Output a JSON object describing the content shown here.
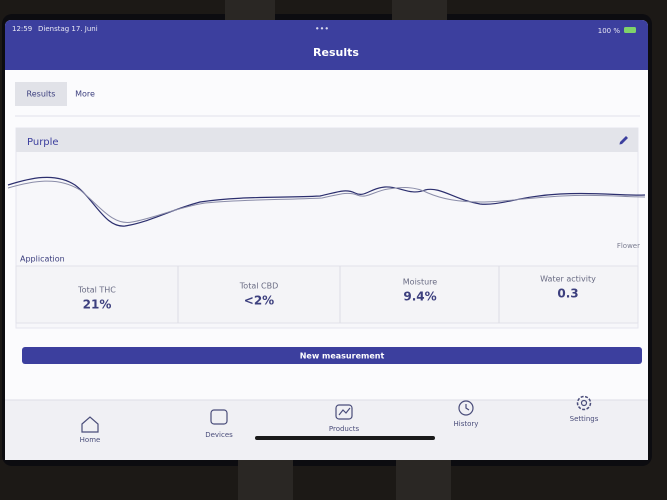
{
  "status": {
    "time": "12:59",
    "date": "Dienstag 17. Juni",
    "battery": "100 %"
  },
  "header": {
    "title": "Results"
  },
  "tabs": [
    "Results",
    "More"
  ],
  "card": {
    "title": "Purple",
    "chart_label": "Flower",
    "section": "Application"
  },
  "metrics": [
    {
      "label": "Total THC",
      "value": "21%"
    },
    {
      "label": "Total CBD",
      "value": "<2%"
    },
    {
      "label": "Moisture",
      "value": "9.4%"
    },
    {
      "label": "Water activity",
      "value": "0.3"
    }
  ],
  "button": "New measurement",
  "nav": [
    "Home",
    "Devices",
    "Products",
    "History",
    "Settings"
  ]
}
